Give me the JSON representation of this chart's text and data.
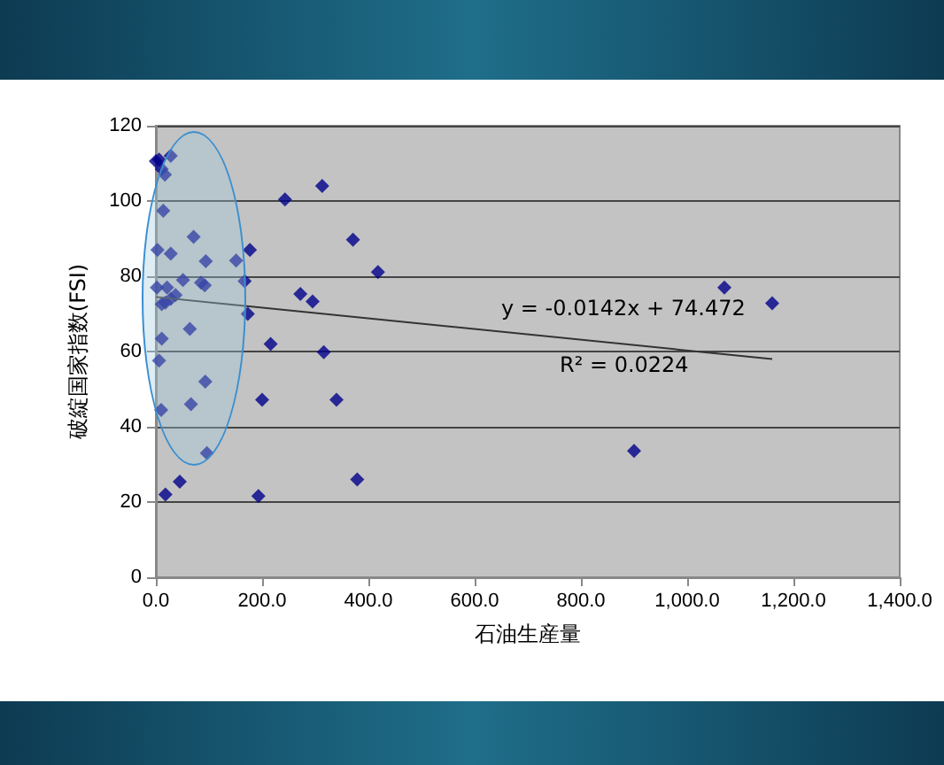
{
  "chart_data": {
    "type": "scatter",
    "xlabel": "石油生産量",
    "ylabel": "破綻国家指数(FSI)",
    "xlim": [
      0,
      1400
    ],
    "ylim": [
      0,
      120
    ],
    "xticks": [
      {
        "value": 0,
        "label": "0.0"
      },
      {
        "value": 200,
        "label": "200.0"
      },
      {
        "value": 400,
        "label": "400.0"
      },
      {
        "value": 600,
        "label": "600.0"
      },
      {
        "value": 800,
        "label": "800.0"
      },
      {
        "value": 1000,
        "label": "1,000.0"
      },
      {
        "value": 1200,
        "label": "1,200.0"
      },
      {
        "value": 1400,
        "label": "1,400.0"
      }
    ],
    "yticks": [
      0,
      20,
      40,
      60,
      80,
      100,
      120
    ],
    "grid": "y",
    "marker": "diamond",
    "annotations": [
      "y = -0.0142x + 74.472",
      "R² = 0.0224"
    ],
    "series": [
      {
        "color": "#00008b",
        "x": [
          0,
          6,
          11,
          28,
          17,
          14,
          3,
          28,
          71,
          2,
          21,
          51,
          37,
          28,
          11,
          18,
          94,
          85,
          92,
          64,
          11,
          6,
          93,
          66,
          10,
          96,
          45,
          18,
          151,
          177,
          167,
          173,
          216,
          200,
          193,
          243,
          313,
          272,
          295,
          316,
          371,
          340,
          379,
          418,
          1070,
          1160,
          900
        ],
        "values": [
          110.6,
          111,
          108.5,
          112,
          107,
          97.4,
          87,
          86,
          90.5,
          77,
          77,
          79,
          75,
          74,
          72.6,
          73,
          84,
          78.3,
          77.6,
          66,
          63.4,
          57.6,
          52,
          46,
          44.5,
          33,
          25.4,
          22,
          84.2,
          87,
          78.7,
          70,
          62,
          47.2,
          21.6,
          100.4,
          104,
          75.3,
          73.3,
          59.8,
          89.7,
          47.2,
          26,
          81.1,
          77,
          72.8,
          33.6
        ]
      },
      {
        "type": "line",
        "color": "#333333",
        "marker": "none",
        "x": [
          0,
          1160
        ],
        "values": [
          74.5,
          58.0
        ]
      }
    ]
  }
}
